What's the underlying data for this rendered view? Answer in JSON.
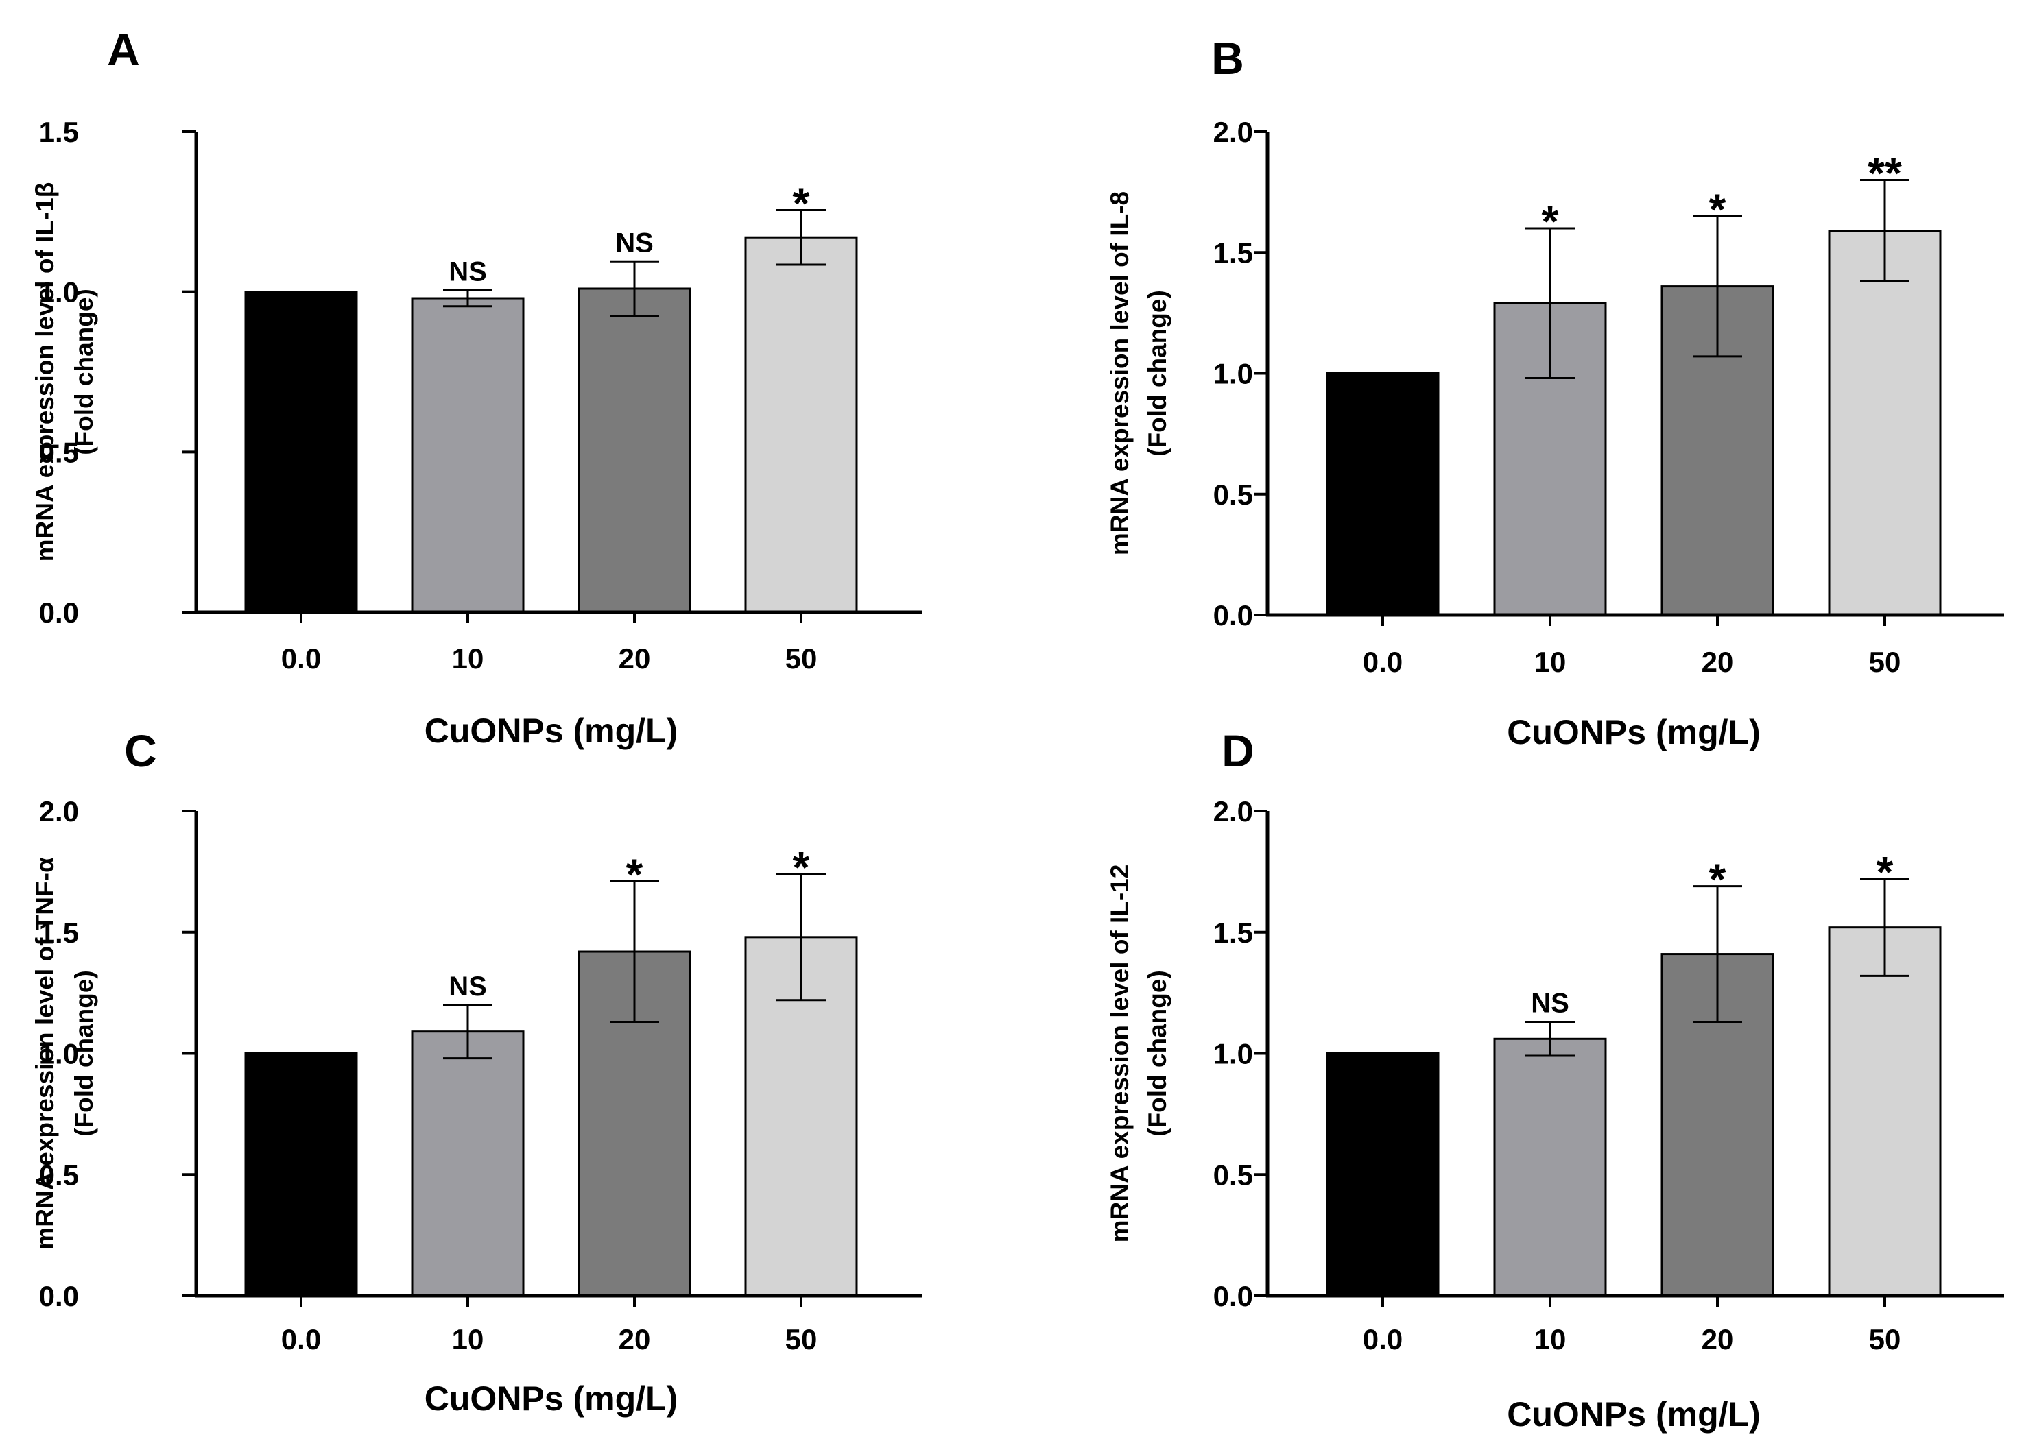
{
  "chart_data": [
    {
      "panel": "A",
      "type": "bar",
      "categories": [
        "0.0",
        "10",
        "20",
        "50"
      ],
      "values": [
        1.0,
        0.98,
        1.01,
        1.17
      ],
      "errors": [
        0.0,
        0.025,
        0.085,
        0.085
      ],
      "annotations": [
        "",
        "NS",
        "NS",
        "*"
      ],
      "ylabel_line1": "mRNA expression level of IL-1β",
      "ylabel_line2": "(Fold change)",
      "xlabel": "CuONPs (mg/L)",
      "ylim": [
        0,
        1.5
      ],
      "yticks": [
        0.0,
        0.5,
        1.0,
        1.5
      ],
      "ytick_labels": [
        "0.0",
        "0.5",
        "1.0",
        "1.5"
      ],
      "bar_colors": [
        "#000000",
        "#9c9ca1",
        "#7b7b7b",
        "#d4d4d4"
      ]
    },
    {
      "panel": "B",
      "type": "bar",
      "categories": [
        "0.0",
        "10",
        "20",
        "50"
      ],
      "values": [
        1.0,
        1.29,
        1.36,
        1.59
      ],
      "errors": [
        0.0,
        0.31,
        0.29,
        0.21
      ],
      "annotations": [
        "",
        "*",
        "*",
        "**"
      ],
      "ylabel_line1": "mRNA expression level of IL-8",
      "ylabel_line2": "(Fold change)",
      "xlabel": "CuONPs (mg/L)",
      "ylim": [
        0,
        2.0
      ],
      "yticks": [
        0.0,
        0.5,
        1.0,
        1.5,
        2.0
      ],
      "ytick_labels": [
        "0.0",
        "0.5",
        "1.0",
        "1.5",
        "2.0"
      ],
      "bar_colors": [
        "#000000",
        "#9c9ca1",
        "#7b7b7b",
        "#d4d4d4"
      ]
    },
    {
      "panel": "C",
      "type": "bar",
      "categories": [
        "0.0",
        "10",
        "20",
        "50"
      ],
      "values": [
        1.0,
        1.09,
        1.42,
        1.48
      ],
      "errors": [
        0.0,
        0.11,
        0.29,
        0.26
      ],
      "annotations": [
        "",
        "NS",
        "*",
        "*"
      ],
      "ylabel_line1": "mRNA expression level of TNF-α",
      "ylabel_line2": "(Fold change)",
      "xlabel": "CuONPs (mg/L)",
      "ylim": [
        0,
        2.0
      ],
      "yticks": [
        0.0,
        0.5,
        1.0,
        1.5,
        2.0
      ],
      "ytick_labels": [
        "0.0",
        "0.5",
        "1.0",
        "1.5",
        "2.0"
      ],
      "bar_colors": [
        "#000000",
        "#9c9ca1",
        "#7b7b7b",
        "#d4d4d4"
      ]
    },
    {
      "panel": "D",
      "type": "bar",
      "categories": [
        "0.0",
        "10",
        "20",
        "50"
      ],
      "values": [
        1.0,
        1.06,
        1.41,
        1.52
      ],
      "errors": [
        0.0,
        0.07,
        0.28,
        0.2
      ],
      "annotations": [
        "",
        "NS",
        "*",
        "*"
      ],
      "ylabel_line1": "mRNA expression level of IL-12",
      "ylabel_line2": "(Fold change)",
      "xlabel": "CuONPs (mg/L)",
      "ylim": [
        0,
        2.0
      ],
      "yticks": [
        0.0,
        0.5,
        1.0,
        1.5,
        2.0
      ],
      "ytick_labels": [
        "0.0",
        "0.5",
        "1.0",
        "1.5",
        "2.0"
      ],
      "bar_colors": [
        "#000000",
        "#9c9ca1",
        "#7b7b7b",
        "#d4d4d4"
      ]
    }
  ]
}
